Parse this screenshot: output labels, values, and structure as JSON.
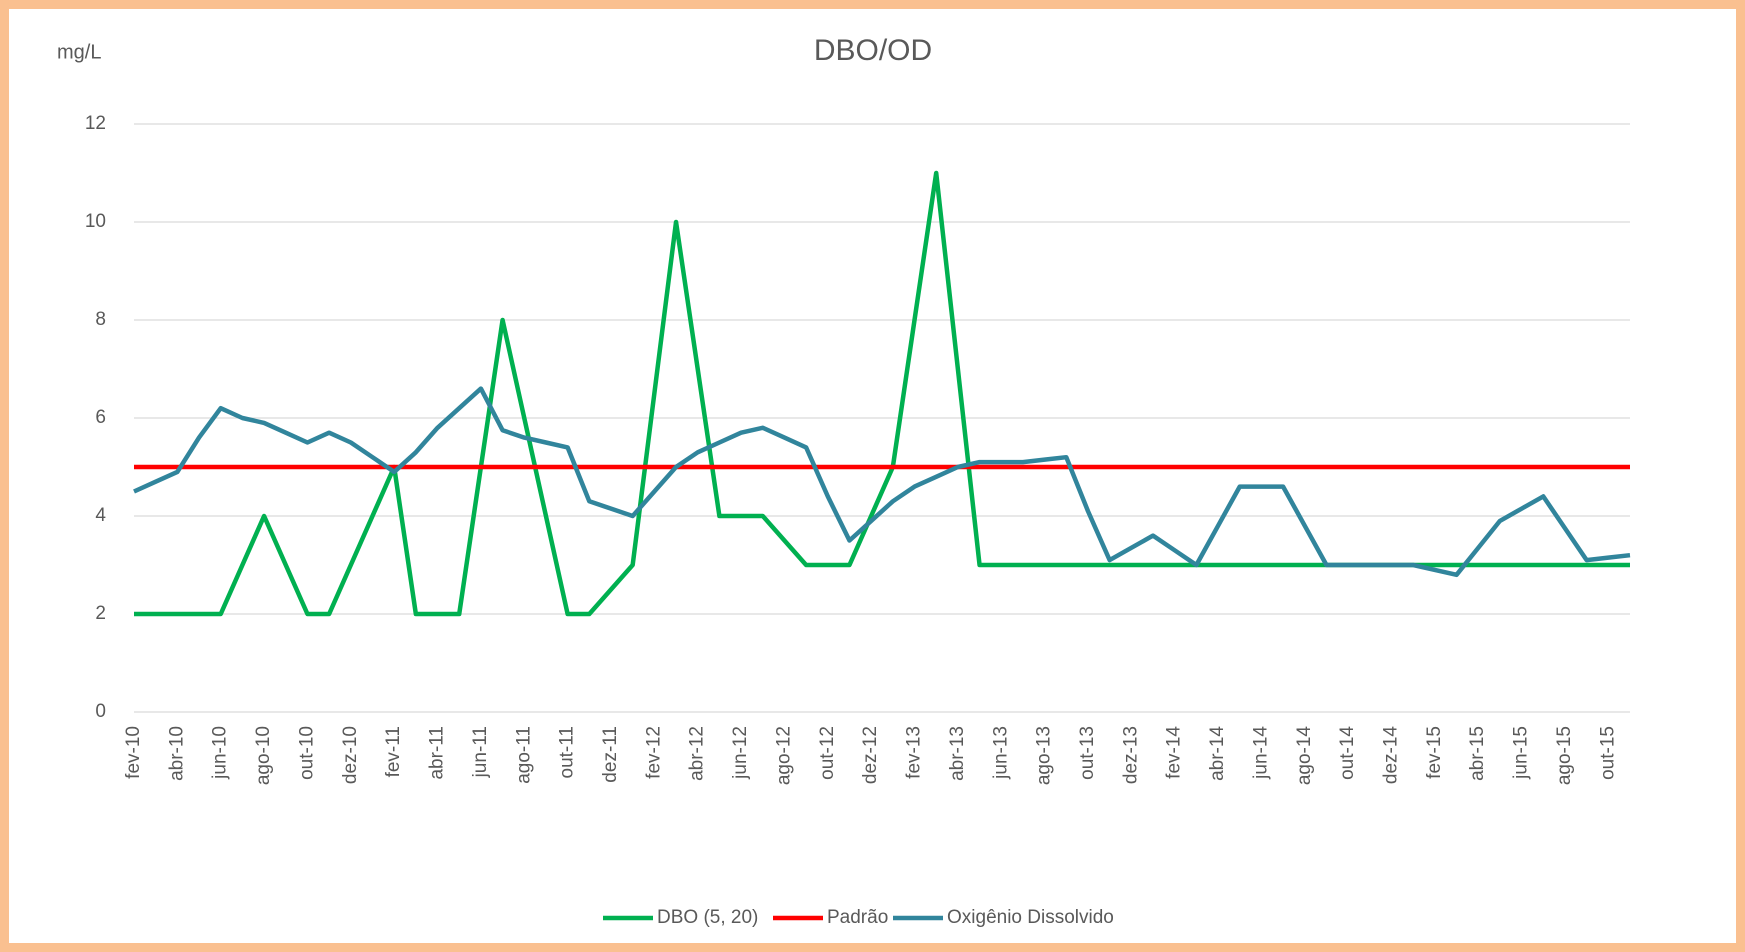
{
  "chart_data": {
    "type": "line",
    "title": "DBO/OD",
    "y_label": "mg/L",
    "categories": [
      "fev-10",
      null,
      "abr-10",
      null,
      "jun-10",
      null,
      "ago-10",
      null,
      "out-10",
      null,
      "dez-10",
      null,
      "fev-11",
      null,
      "abr-11",
      null,
      "jun-11",
      null,
      "ago-11",
      null,
      "out-11",
      null,
      "dez-11",
      null,
      "fev-12",
      null,
      "abr-12",
      null,
      "jun-12",
      null,
      "ago-12",
      null,
      "out-12",
      null,
      "dez-12",
      null,
      "fev-13",
      null,
      "abr-13",
      null,
      "jun-13",
      null,
      "ago-13",
      null,
      "out-13",
      null,
      "dez-13",
      null,
      "fev-14",
      null,
      "abr-14",
      null,
      "jun-14",
      null,
      "ago-14",
      null,
      "out-14",
      null,
      "dez-14",
      null,
      "fev-15",
      null,
      "abr-15",
      null,
      "jun-15",
      null,
      "ago-15",
      null,
      "out-15",
      null
    ],
    "series": [
      {
        "name": "DBO (5, 20)",
        "color": "#00b050",
        "values": [
          2,
          2,
          2,
          2,
          2,
          3,
          4,
          3,
          2,
          2,
          3,
          4,
          5,
          2,
          2,
          2,
          5,
          8,
          6,
          4,
          2,
          2,
          2.5,
          3,
          6.5,
          10,
          7,
          4,
          4,
          4,
          3.5,
          3,
          3,
          3,
          4,
          5,
          8,
          11,
          7,
          3,
          3,
          3,
          3,
          3,
          3,
          3,
          3,
          3,
          3,
          3,
          3,
          3,
          3,
          3,
          3,
          3,
          3,
          3,
          3,
          3,
          3,
          3,
          3,
          3,
          3,
          3,
          3,
          3,
          3,
          3
        ]
      },
      {
        "name": "Padrão",
        "color": "#ff0000",
        "values": [
          5,
          5,
          5,
          5,
          5,
          5,
          5,
          5,
          5,
          5,
          5,
          5,
          5,
          5,
          5,
          5,
          5,
          5,
          5,
          5,
          5,
          5,
          5,
          5,
          5,
          5,
          5,
          5,
          5,
          5,
          5,
          5,
          5,
          5,
          5,
          5,
          5,
          5,
          5,
          5,
          5,
          5,
          5,
          5,
          5,
          5,
          5,
          5,
          5,
          5,
          5,
          5,
          5,
          5,
          5,
          5,
          5,
          5,
          5,
          5,
          5,
          5,
          5,
          5,
          5,
          5,
          5,
          5,
          5,
          5
        ]
      },
      {
        "name": "Oxigênio Dissolvido",
        "color": "#31859c",
        "values": [
          4.5,
          4.7,
          4.9,
          5.6,
          6.2,
          6.0,
          5.9,
          5.7,
          5.5,
          5.7,
          5.5,
          5.2,
          4.9,
          5.3,
          5.8,
          6.2,
          6.6,
          5.75,
          5.6,
          5.5,
          5.4,
          4.3,
          4.15,
          4.0,
          4.5,
          5.0,
          5.3,
          5.5,
          5.7,
          5.8,
          5.6,
          5.4,
          4.4,
          3.5,
          3.9,
          4.3,
          4.6,
          4.8,
          5.0,
          5.1,
          5.1,
          5.1,
          5.15,
          5.2,
          4.1,
          3.1,
          3.35,
          3.6,
          3.3,
          3.0,
          3.8,
          4.6,
          4.6,
          4.6,
          3.8,
          3.0,
          3.0,
          3.0,
          3.0,
          3.0,
          2.9,
          2.8,
          3.35,
          3.9,
          4.15,
          4.4,
          3.75,
          3.1,
          3.15,
          3.2
        ]
      }
    ],
    "ylim": [
      0,
      12
    ],
    "yticks": [
      0,
      2,
      4,
      6,
      8,
      10,
      12
    ],
    "grid": true,
    "legend": "bottom"
  }
}
